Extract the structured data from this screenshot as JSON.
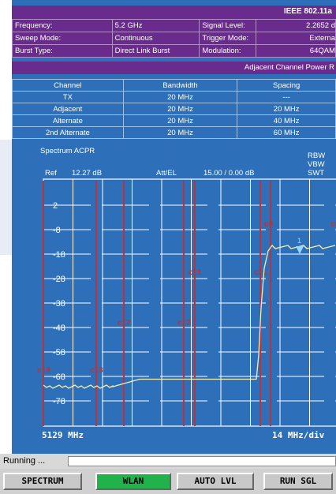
{
  "title": "IEEE 802.11a",
  "info": {
    "frequency_label": "Frequency:",
    "frequency_value": "5.2 GHz",
    "signal_level_label": "Signal Level:",
    "signal_level_value": "2.2652 d",
    "sweep_mode_label": "Sweep Mode:",
    "sweep_mode_value": "Continuous",
    "trigger_mode_label": "Trigger Mode:",
    "trigger_mode_value": "Externa",
    "burst_type_label": "Burst Type:",
    "burst_type_value": "Direct Link Burst",
    "modulation_label": "Modulation:",
    "modulation_value": "64QAM"
  },
  "section_title": "Adjacent Channel Power R",
  "acp_table": {
    "headers": [
      "Channel",
      "Bandwidth",
      "Spacing"
    ],
    "rows": [
      [
        "TX",
        "20 MHz",
        "---"
      ],
      [
        "Adjacent",
        "20 MHz",
        "20 MHz"
      ],
      [
        "Alternate",
        "20 MHz",
        "40 MHz"
      ],
      [
        "2nd Alternate",
        "20 MHz",
        "60 MHz"
      ]
    ]
  },
  "plot": {
    "name": "Spectrum ACPR",
    "rbw": "RBW",
    "vbw": "VBW",
    "swt": "SWT",
    "ref_label": "Ref",
    "ref_value": "12.27 dB",
    "att_label": "Att/EL",
    "att_value": "15.00 / 0.00 dB",
    "start_freq": "5129 MHz",
    "span_per_div": "14 MHz/div",
    "y_ticks": [
      "2",
      "-8",
      "-18",
      "-28",
      "-38",
      "-48",
      "-58",
      "-68",
      "-78"
    ],
    "markers": [
      "c13",
      "c13",
      "c12",
      "c12",
      "c11",
      "c11",
      "c0",
      "c0"
    ],
    "marker_1": "1"
  },
  "status": {
    "text": "Running ..."
  },
  "softkeys": [
    "SPECTRUM",
    "WLAN",
    "AUTO LVL",
    "RUN SGL"
  ],
  "colors": {
    "screen_bg": "#2d6fb8",
    "title_bg": "#6a2c8c",
    "trace": "#f4f0b0",
    "marker_line": "#b8333a",
    "active_softkey": "#22b24c"
  }
}
